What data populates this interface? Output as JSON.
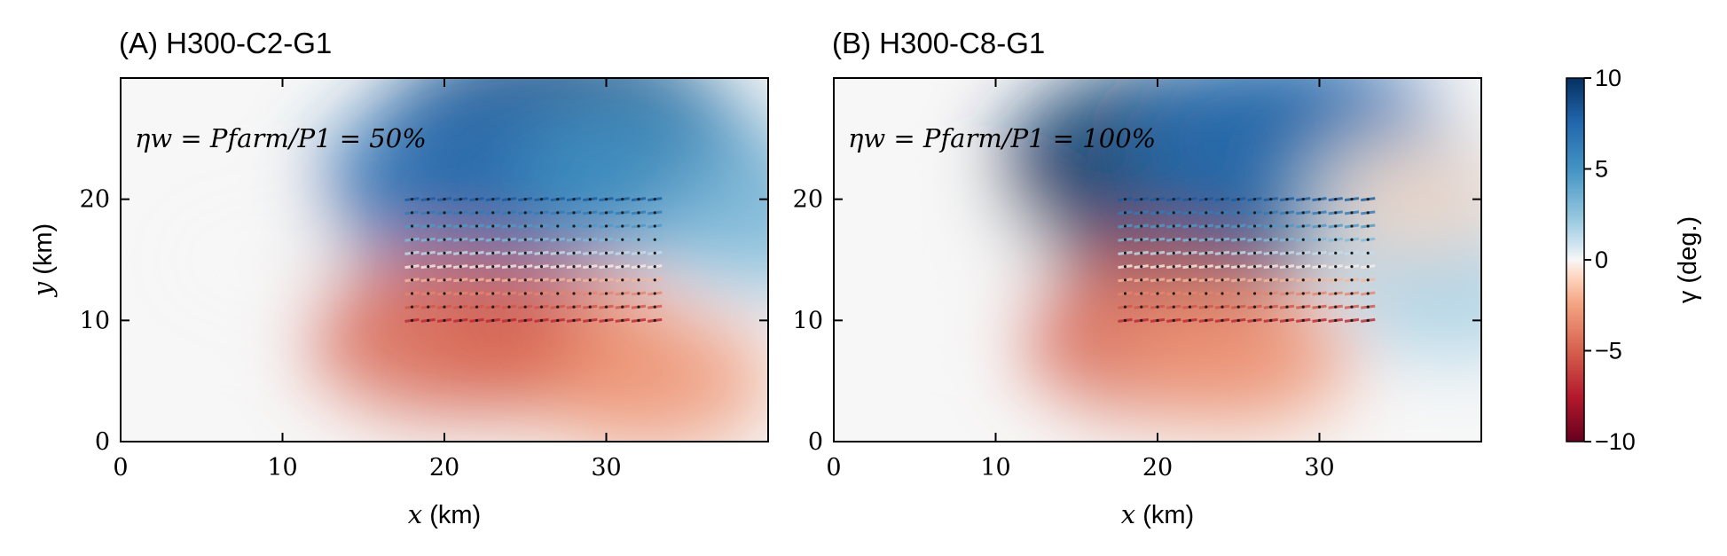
{
  "chart_data": [
    {
      "type": "heatmap",
      "title": "(A) H300-C2-G1",
      "annotation": "ηw = Pfarm/P1 = 50%",
      "xlabel_var": "x",
      "xlabel_unit": " (km)",
      "ylabel_var": "y",
      "ylabel_unit": " (km)",
      "xlim": [
        0,
        40
      ],
      "ylim": [
        0,
        30
      ],
      "xticks": [
        0,
        10,
        20,
        30
      ],
      "yticks": [
        0,
        10,
        20
      ],
      "farm_extent": {
        "x": [
          18,
          33
        ],
        "y": [
          10,
          20
        ]
      },
      "field": [
        {
          "x": 27,
          "y": 25,
          "value": 9
        },
        {
          "x": 22,
          "y": 21,
          "value": 7
        },
        {
          "x": 33,
          "y": 22,
          "value": 5
        },
        {
          "x": 40,
          "y": 18,
          "value": 3
        },
        {
          "x": 27,
          "y": 8,
          "value": -4
        },
        {
          "x": 33,
          "y": 5,
          "value": -3
        },
        {
          "x": 20,
          "y": 9,
          "value": -5
        },
        {
          "x": 8,
          "y": 15,
          "value": 0
        }
      ]
    },
    {
      "type": "heatmap",
      "title": "(B) H300-C8-G1",
      "annotation": "ηw = Pfarm/P1 = 100%",
      "xlabel_var": "x",
      "xlabel_unit": " (km)",
      "ylabel_var": "y",
      "ylabel_unit": " (km)",
      "xlim": [
        0,
        40
      ],
      "ylim": [
        0,
        30
      ],
      "xticks": [
        0,
        10,
        20,
        30
      ],
      "yticks": [
        0,
        10,
        20
      ],
      "farm_extent": {
        "x": [
          18,
          33
        ],
        "y": [
          10,
          20
        ]
      },
      "field": [
        {
          "x": 22,
          "y": 22,
          "value": 10
        },
        {
          "x": 28,
          "y": 25,
          "value": 7
        },
        {
          "x": 35,
          "y": 20,
          "value": 3
        },
        {
          "x": 38,
          "y": 12,
          "value": 2
        },
        {
          "x": 20,
          "y": 9,
          "value": -5
        },
        {
          "x": 25,
          "y": 7,
          "value": -3
        },
        {
          "x": 36,
          "y": 20,
          "value": -1
        },
        {
          "x": 8,
          "y": 15,
          "value": 0
        }
      ]
    }
  ],
  "colorbar": {
    "label": "γ (deg.)",
    "ticks": [
      -10,
      -5,
      0,
      5,
      10
    ],
    "tick_labels": [
      "−10",
      "−5",
      "0",
      "5",
      "10"
    ],
    "range": [
      -10,
      10
    ],
    "colormap": "RdBu"
  }
}
